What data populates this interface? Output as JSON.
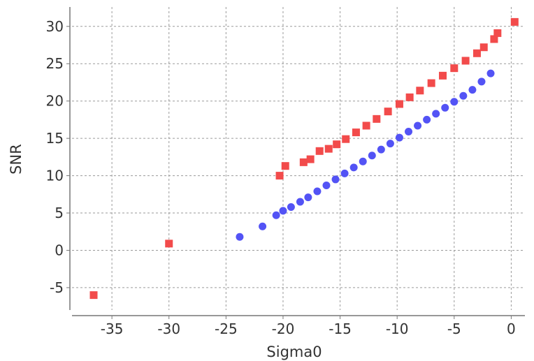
{
  "chart_data": {
    "type": "scatter",
    "title": "",
    "xlabel": "Sigma0",
    "ylabel": "SNR",
    "xlim": [
      -38.5,
      1.2
    ],
    "ylim": [
      -8.0,
      32.6
    ],
    "xticks": [
      -35,
      -30,
      -25,
      -20,
      -15,
      -10,
      -5,
      0
    ],
    "yticks": [
      -5,
      0,
      5,
      10,
      15,
      20,
      25,
      30
    ],
    "grid": true,
    "legend": "none",
    "series": [
      {
        "color": "#f24b4b",
        "marker": "square",
        "points": [
          [
            -36.6,
            -6.0
          ],
          [
            -30.0,
            0.9
          ],
          [
            -20.3,
            10.0
          ],
          [
            -19.8,
            11.3
          ],
          [
            -18.2,
            11.8
          ],
          [
            -17.6,
            12.2
          ],
          [
            -16.8,
            13.3
          ],
          [
            -16.0,
            13.6
          ],
          [
            -15.3,
            14.2
          ],
          [
            -14.5,
            14.9
          ],
          [
            -13.6,
            15.8
          ],
          [
            -12.7,
            16.7
          ],
          [
            -11.8,
            17.6
          ],
          [
            -10.8,
            18.6
          ],
          [
            -9.8,
            19.6
          ],
          [
            -8.9,
            20.5
          ],
          [
            -8.0,
            21.4
          ],
          [
            -7.0,
            22.4
          ],
          [
            -6.0,
            23.4
          ],
          [
            -5.0,
            24.4
          ],
          [
            -4.0,
            25.4
          ],
          [
            -3.0,
            26.4
          ],
          [
            -2.4,
            27.2
          ],
          [
            -1.5,
            28.3
          ],
          [
            -1.2,
            29.1
          ],
          [
            0.3,
            30.6
          ]
        ]
      },
      {
        "color": "#5353f5",
        "marker": "circle",
        "points": [
          [
            -23.8,
            1.8
          ],
          [
            -21.8,
            3.2
          ],
          [
            -20.6,
            4.7
          ],
          [
            -20.0,
            5.3
          ],
          [
            -19.3,
            5.8
          ],
          [
            -18.5,
            6.5
          ],
          [
            -17.8,
            7.1
          ],
          [
            -17.0,
            7.9
          ],
          [
            -16.2,
            8.7
          ],
          [
            -15.4,
            9.5
          ],
          [
            -14.6,
            10.3
          ],
          [
            -13.8,
            11.1
          ],
          [
            -13.0,
            11.9
          ],
          [
            -12.2,
            12.7
          ],
          [
            -11.4,
            13.5
          ],
          [
            -10.6,
            14.3
          ],
          [
            -9.8,
            15.1
          ],
          [
            -9.0,
            15.9
          ],
          [
            -8.2,
            16.7
          ],
          [
            -7.4,
            17.5
          ],
          [
            -6.6,
            18.3
          ],
          [
            -5.8,
            19.1
          ],
          [
            -5.0,
            19.9
          ],
          [
            -4.2,
            20.7
          ],
          [
            -3.4,
            21.5
          ],
          [
            -2.6,
            22.6
          ],
          [
            -1.8,
            23.7
          ]
        ]
      }
    ]
  }
}
